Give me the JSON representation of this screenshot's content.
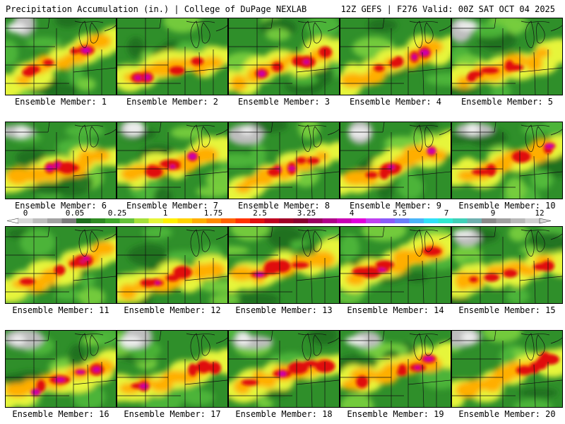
{
  "header": {
    "title": "Precipitation Accumulation (in.) | College of DuPage NEXLAB",
    "valid": "12Z GEFS | F276 Valid: 00Z SAT OCT 04 2025"
  },
  "members": [
    {
      "label": "Ensemble Member: 1"
    },
    {
      "label": "Ensemble Member: 2"
    },
    {
      "label": "Ensemble Member: 3"
    },
    {
      "label": "Ensemble Member: 4"
    },
    {
      "label": "Ensemble Member: 5"
    },
    {
      "label": "Ensemble Member: 6"
    },
    {
      "label": "Ensemble Member: 7"
    },
    {
      "label": "Ensemble Member: 8"
    },
    {
      "label": "Ensemble Member: 9"
    },
    {
      "label": "Ensemble Member: 10"
    },
    {
      "label": "Ensemble Member: 11"
    },
    {
      "label": "Ensemble Member: 12"
    },
    {
      "label": "Ensemble Member: 13"
    },
    {
      "label": "Ensemble Member: 14"
    },
    {
      "label": "Ensemble Member: 15"
    },
    {
      "label": "Ensemble Member: 16"
    },
    {
      "label": "Ensemble Member: 17"
    },
    {
      "label": "Ensemble Member: 18"
    },
    {
      "label": "Ensemble Member: 19"
    },
    {
      "label": "Ensemble Member: 20"
    }
  ],
  "colorbar": {
    "labels": [
      "0",
      "0.05",
      "0.25",
      "1",
      "1.75",
      "2.5",
      "3.25",
      "4",
      "5.5",
      "7",
      "9",
      "12"
    ],
    "colors": [
      "#d8d8d8",
      "#bdbdbd",
      "#a2a2a2",
      "#7c7c7c",
      "#1e6e1e",
      "#2e8b22",
      "#3fa72b",
      "#66c23a",
      "#a6e03a",
      "#e6f53a",
      "#fff000",
      "#ffd200",
      "#ffae00",
      "#ff8a00",
      "#ff6200",
      "#ff3200",
      "#e01010",
      "#c00020",
      "#a00028",
      "#8a0030",
      "#9a0060",
      "#b0008a",
      "#c800b4",
      "#e000dc",
      "#c040f0",
      "#8a5af8",
      "#6a7ef8",
      "#4ab4f8",
      "#30e0f8",
      "#30e8d0",
      "#40d0b8",
      "#70b0b0",
      "#8a8a8a",
      "#a0a0a0",
      "#b8b8b8",
      "#d0d0d0"
    ]
  }
}
